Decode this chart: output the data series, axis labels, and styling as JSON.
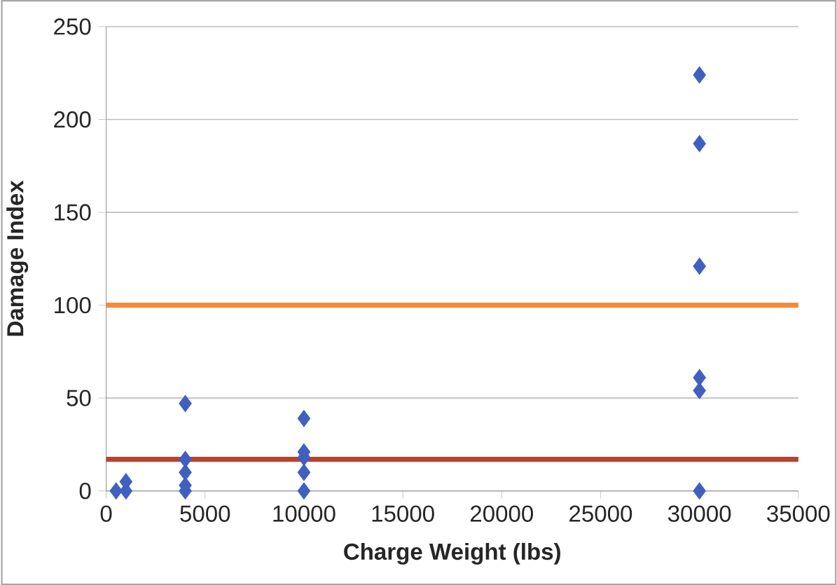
{
  "chart_data": {
    "type": "scatter",
    "xlabel": "Charge Weight (lbs)",
    "ylabel": "Damage Index",
    "x": [
      500,
      1000,
      1000,
      4000,
      4000,
      4000,
      4000,
      4000,
      10000,
      10000,
      10000,
      10000,
      10000,
      30000,
      30000,
      30000,
      30000,
      30000,
      30000
    ],
    "values": [
      0,
      0,
      5,
      47,
      17,
      10,
      3,
      0,
      39,
      21,
      18,
      10,
      0,
      224,
      187,
      121,
      61,
      54,
      0
    ],
    "color": "#4060c0",
    "marker": "diamond",
    "grid": "y",
    "xlim": [
      0,
      35000
    ],
    "xticks": [
      0,
      5000,
      10000,
      15000,
      20000,
      25000,
      30000,
      35000
    ],
    "ylim": [
      0,
      250
    ],
    "yticks": [
      0,
      50,
      100,
      150,
      200,
      250
    ],
    "ref_lines": [
      {
        "axis": "y",
        "value": 100,
        "color": "#f58a3c"
      },
      {
        "axis": "y",
        "value": 17,
        "color": "#b5442f"
      }
    ]
  }
}
